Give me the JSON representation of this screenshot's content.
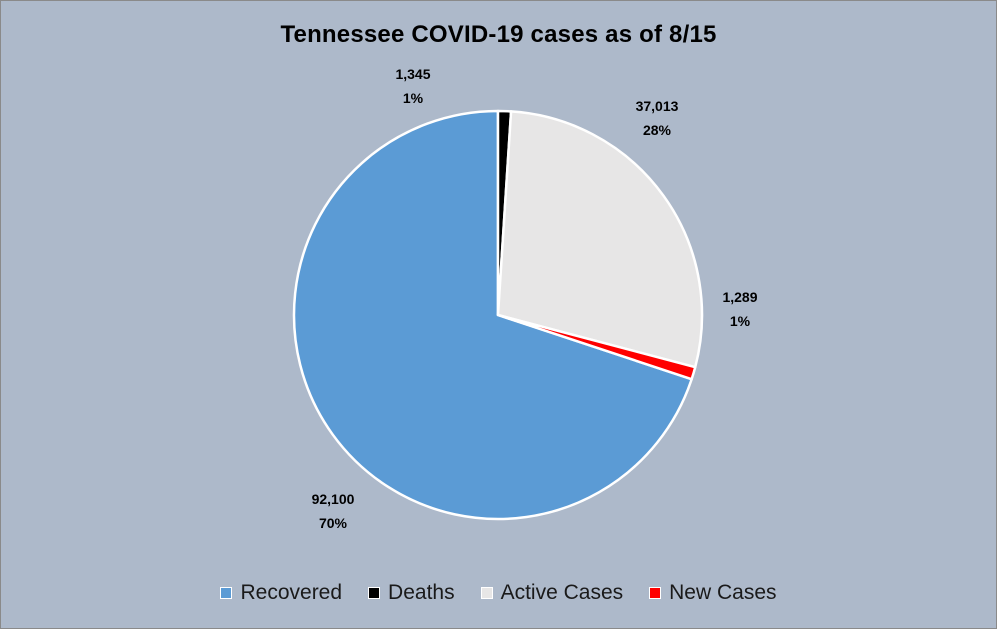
{
  "chart_data": {
    "type": "pie",
    "title": "Tennessee COVID-19 cases as of 8/15",
    "legend_position": "bottom",
    "slices": [
      {
        "name": "Recovered",
        "value": 92100,
        "value_label": "92,100",
        "percent_label": "70%",
        "color": "#5b9bd5"
      },
      {
        "name": "Deaths",
        "value": 1345,
        "value_label": "1,345",
        "percent_label": "1%",
        "color": "#000000"
      },
      {
        "name": "Active Cases",
        "value": 37013,
        "value_label": "37,013",
        "percent_label": "28%",
        "color": "#e7e6e6"
      },
      {
        "name": "New Cases",
        "value": 1289,
        "value_label": "1,289",
        "percent_label": "1%",
        "color": "#ff0000"
      }
    ]
  },
  "colors": {
    "background": "#adb9ca",
    "slice_border": "#ffffff"
  }
}
